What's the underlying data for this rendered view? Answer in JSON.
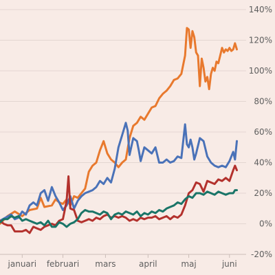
{
  "chart_data": {
    "type": "line",
    "title": "",
    "xlabel": "",
    "ylabel": "",
    "x_tick_labels": [
      "januari",
      "februari",
      "mars",
      "april",
      "maj",
      "juni"
    ],
    "x_tick_positions": [
      12,
      34,
      57,
      80,
      102,
      124
    ],
    "x_range": [
      0,
      133
    ],
    "ylim": [
      -20,
      140
    ],
    "y_ticks": [
      -20,
      0,
      20,
      40,
      60,
      80,
      100,
      120,
      140
    ],
    "y_tick_labels": [
      "-20%",
      "0%",
      "20%",
      "40%",
      "60%",
      "80%",
      "100%",
      "120%",
      "140%"
    ],
    "grid": "horizontal",
    "legend": "none",
    "series": [
      {
        "color": "#e8792e",
        "points": [
          [
            0,
            0
          ],
          [
            4,
            5
          ],
          [
            8,
            8
          ],
          [
            12,
            5
          ],
          [
            16,
            9
          ],
          [
            20,
            10
          ],
          [
            22,
            17
          ],
          [
            24,
            11
          ],
          [
            28,
            12
          ],
          [
            30,
            16
          ],
          [
            32,
            14
          ],
          [
            34,
            13
          ],
          [
            36,
            16
          ],
          [
            38,
            12
          ],
          [
            40,
            18
          ],
          [
            42,
            17
          ],
          [
            44,
            20
          ],
          [
            46,
            23
          ],
          [
            48,
            34
          ],
          [
            50,
            38
          ],
          [
            52,
            40
          ],
          [
            54,
            48
          ],
          [
            56,
            54
          ],
          [
            58,
            46
          ],
          [
            60,
            42
          ],
          [
            62,
            40
          ],
          [
            64,
            37
          ],
          [
            66,
            40
          ],
          [
            68,
            42
          ],
          [
            70,
            56
          ],
          [
            72,
            64
          ],
          [
            74,
            66
          ],
          [
            76,
            70
          ],
          [
            78,
            68
          ],
          [
            80,
            72
          ],
          [
            82,
            76
          ],
          [
            84,
            77
          ],
          [
            86,
            82
          ],
          [
            88,
            85
          ],
          [
            90,
            87
          ],
          [
            92,
            90
          ],
          [
            94,
            94
          ],
          [
            96,
            95
          ],
          [
            98,
            98
          ],
          [
            100,
            110
          ],
          [
            101,
            128
          ],
          [
            102,
            127
          ],
          [
            103,
            115
          ],
          [
            104,
            126
          ],
          [
            105,
            122
          ],
          [
            106,
            112
          ],
          [
            107,
            110
          ],
          [
            108,
            90
          ],
          [
            109,
            108
          ],
          [
            110,
            102
          ],
          [
            111,
            93
          ],
          [
            112,
            96
          ],
          [
            113,
            88
          ],
          [
            114,
            98
          ],
          [
            115,
            102
          ],
          [
            116,
            100
          ],
          [
            117,
            106
          ],
          [
            118,
            105
          ],
          [
            119,
            110
          ],
          [
            120,
            115
          ],
          [
            121,
            112
          ],
          [
            122,
            114
          ],
          [
            123,
            113
          ],
          [
            124,
            115
          ],
          [
            125,
            113
          ],
          [
            126,
            114
          ],
          [
            127,
            118
          ],
          [
            128,
            114
          ]
        ]
      },
      {
        "color": "#4a72b8",
        "points": [
          [
            0,
            2
          ],
          [
            3,
            4
          ],
          [
            6,
            6
          ],
          [
            8,
            3
          ],
          [
            10,
            4
          ],
          [
            12,
            8
          ],
          [
            14,
            6
          ],
          [
            16,
            12
          ],
          [
            18,
            14
          ],
          [
            20,
            12
          ],
          [
            22,
            20
          ],
          [
            24,
            22
          ],
          [
            26,
            15
          ],
          [
            28,
            24
          ],
          [
            30,
            18
          ],
          [
            32,
            14
          ],
          [
            34,
            9
          ],
          [
            36,
            12
          ],
          [
            38,
            18
          ],
          [
            40,
            10
          ],
          [
            42,
            15
          ],
          [
            44,
            18
          ],
          [
            46,
            20
          ],
          [
            48,
            21
          ],
          [
            50,
            22
          ],
          [
            52,
            24
          ],
          [
            54,
            28
          ],
          [
            56,
            26
          ],
          [
            58,
            30
          ],
          [
            60,
            27
          ],
          [
            62,
            36
          ],
          [
            64,
            50
          ],
          [
            66,
            58
          ],
          [
            68,
            66
          ],
          [
            69,
            61
          ],
          [
            70,
            45
          ],
          [
            72,
            56
          ],
          [
            74,
            54
          ],
          [
            75,
            48
          ],
          [
            76,
            41
          ],
          [
            78,
            50
          ],
          [
            80,
            48
          ],
          [
            82,
            46
          ],
          [
            84,
            50
          ],
          [
            86,
            40
          ],
          [
            88,
            40
          ],
          [
            90,
            42
          ],
          [
            92,
            40
          ],
          [
            94,
            41
          ],
          [
            96,
            44
          ],
          [
            98,
            43
          ],
          [
            100,
            65
          ],
          [
            101,
            52
          ],
          [
            102,
            50
          ],
          [
            103,
            55
          ],
          [
            104,
            50
          ],
          [
            105,
            42
          ],
          [
            106,
            46
          ],
          [
            108,
            56
          ],
          [
            110,
            54
          ],
          [
            112,
            44
          ],
          [
            114,
            40
          ],
          [
            116,
            38
          ],
          [
            118,
            37
          ],
          [
            120,
            38
          ],
          [
            122,
            37
          ],
          [
            124,
            41
          ],
          [
            126,
            47
          ],
          [
            127,
            42
          ],
          [
            128,
            54
          ]
        ]
      },
      {
        "color": "#b3312d",
        "points": [
          [
            0,
            2
          ],
          [
            2,
            0
          ],
          [
            4,
            -1
          ],
          [
            6,
            -1
          ],
          [
            8,
            -5
          ],
          [
            10,
            -5
          ],
          [
            12,
            -5
          ],
          [
            14,
            -4
          ],
          [
            16,
            -6
          ],
          [
            18,
            -2
          ],
          [
            20,
            -3
          ],
          [
            22,
            -4
          ],
          [
            24,
            -2
          ],
          [
            26,
            -1
          ],
          [
            28,
            0
          ],
          [
            30,
            -1
          ],
          [
            32,
            2
          ],
          [
            34,
            3
          ],
          [
            36,
            15
          ],
          [
            37,
            31
          ],
          [
            38,
            10
          ],
          [
            40,
            9
          ],
          [
            42,
            2
          ],
          [
            44,
            1
          ],
          [
            46,
            2
          ],
          [
            48,
            3
          ],
          [
            50,
            2
          ],
          [
            52,
            4
          ],
          [
            54,
            3
          ],
          [
            56,
            5
          ],
          [
            58,
            6
          ],
          [
            60,
            4
          ],
          [
            62,
            5
          ],
          [
            64,
            4
          ],
          [
            66,
            5
          ],
          [
            68,
            4
          ],
          [
            70,
            2
          ],
          [
            72,
            3
          ],
          [
            74,
            2
          ],
          [
            76,
            4
          ],
          [
            78,
            3
          ],
          [
            80,
            4
          ],
          [
            82,
            4
          ],
          [
            84,
            5
          ],
          [
            86,
            3
          ],
          [
            88,
            4
          ],
          [
            90,
            5
          ],
          [
            92,
            3
          ],
          [
            94,
            5
          ],
          [
            96,
            4
          ],
          [
            98,
            6
          ],
          [
            100,
            12
          ],
          [
            102,
            20
          ],
          [
            104,
            22
          ],
          [
            106,
            27
          ],
          [
            108,
            26
          ],
          [
            110,
            21
          ],
          [
            112,
            28
          ],
          [
            114,
            27
          ],
          [
            116,
            26
          ],
          [
            118,
            29
          ],
          [
            120,
            28
          ],
          [
            122,
            30
          ],
          [
            124,
            28
          ],
          [
            126,
            35
          ],
          [
            127,
            38
          ],
          [
            128,
            35
          ]
        ]
      },
      {
        "color": "#1a7568",
        "points": [
          [
            0,
            1
          ],
          [
            2,
            3
          ],
          [
            4,
            3
          ],
          [
            6,
            5
          ],
          [
            8,
            4
          ],
          [
            10,
            5
          ],
          [
            12,
            2
          ],
          [
            14,
            3
          ],
          [
            16,
            2
          ],
          [
            18,
            1
          ],
          [
            20,
            0
          ],
          [
            22,
            1
          ],
          [
            24,
            -1
          ],
          [
            26,
            2
          ],
          [
            28,
            -2
          ],
          [
            30,
            -2
          ],
          [
            32,
            1
          ],
          [
            34,
            0
          ],
          [
            36,
            -2
          ],
          [
            38,
            0
          ],
          [
            40,
            1
          ],
          [
            42,
            3
          ],
          [
            44,
            7
          ],
          [
            46,
            9
          ],
          [
            48,
            8
          ],
          [
            50,
            8
          ],
          [
            52,
            7
          ],
          [
            54,
            6
          ],
          [
            56,
            8
          ],
          [
            58,
            7
          ],
          [
            60,
            3
          ],
          [
            62,
            6
          ],
          [
            64,
            7
          ],
          [
            66,
            6
          ],
          [
            68,
            8
          ],
          [
            70,
            7
          ],
          [
            72,
            6
          ],
          [
            74,
            8
          ],
          [
            76,
            5
          ],
          [
            78,
            7
          ],
          [
            80,
            6
          ],
          [
            82,
            8
          ],
          [
            84,
            7
          ],
          [
            86,
            9
          ],
          [
            88,
            8
          ],
          [
            90,
            10
          ],
          [
            92,
            11
          ],
          [
            94,
            12
          ],
          [
            96,
            14
          ],
          [
            98,
            13
          ],
          [
            100,
            16
          ],
          [
            102,
            18
          ],
          [
            104,
            17
          ],
          [
            106,
            20
          ],
          [
            108,
            20
          ],
          [
            110,
            19
          ],
          [
            112,
            21
          ],
          [
            114,
            20
          ],
          [
            116,
            19
          ],
          [
            118,
            21
          ],
          [
            120,
            20
          ],
          [
            122,
            19
          ],
          [
            124,
            20
          ],
          [
            126,
            20
          ],
          [
            127,
            22
          ],
          [
            128,
            22
          ]
        ]
      }
    ]
  }
}
